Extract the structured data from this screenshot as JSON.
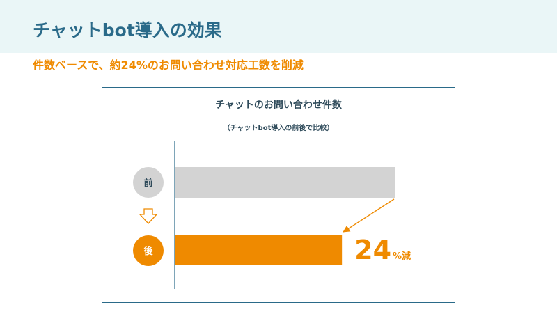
{
  "slide": {
    "title": "チャットbot導入の効果",
    "subtitle": "件数ベースで、約24%のお問い合わせ対応工数を削減"
  },
  "colors": {
    "header_band": "#eaf6f7",
    "title": "#2a6a89",
    "accent": "#ef8a00",
    "before_bar": "#d3d3d3",
    "before_circle": "#d3d3d3",
    "frame": "#2a6a89"
  },
  "icons": {
    "transition": "down-arrow-outline-icon",
    "connector": "diagonal-arrow-icon"
  },
  "chart_data": {
    "type": "bar",
    "orientation": "horizontal",
    "title": "チャットのお問い合わせ件数",
    "note": "（チャットbot導入の前後で比較）",
    "categories": [
      "前",
      "後"
    ],
    "values": [
      100,
      76
    ],
    "xlim": [
      0,
      100
    ],
    "grid": false,
    "legend": "none",
    "annotation": {
      "value": "24",
      "unit": "%減"
    }
  }
}
